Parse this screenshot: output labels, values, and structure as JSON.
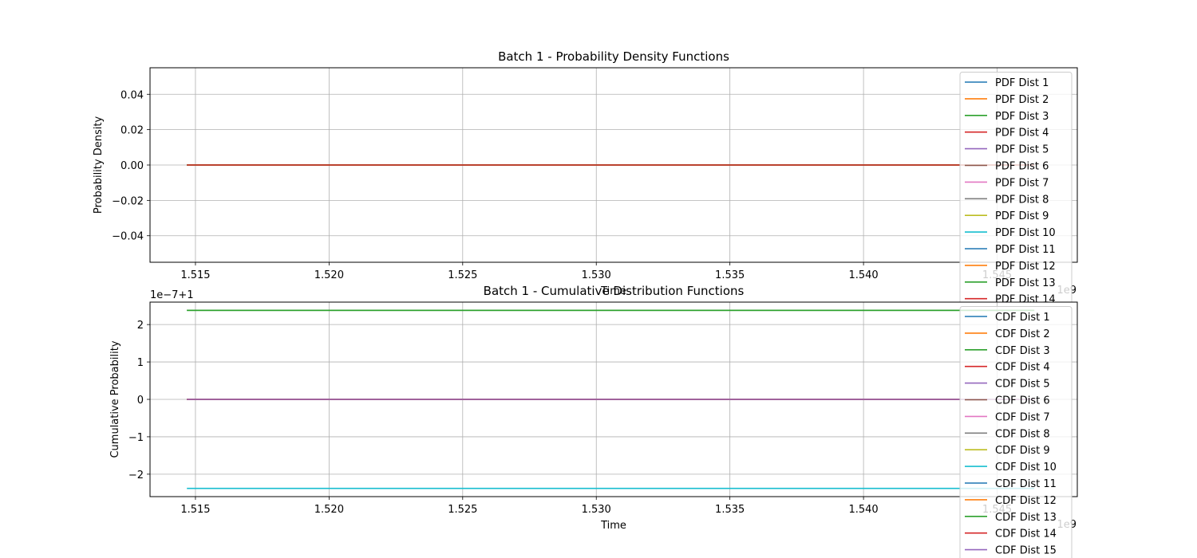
{
  "chart_data": [
    {
      "type": "line",
      "title": "Batch 1 - Probability Density Functions",
      "xlabel": "Time",
      "ylabel": "Probability Density",
      "x_offset_label": "1e9",
      "xlim": [
        1.5133,
        1.548
      ],
      "ylim": [
        -0.055,
        0.055
      ],
      "x_ticks": [
        1.515,
        1.52,
        1.525,
        1.53,
        1.535,
        1.54,
        1.545
      ],
      "x_tick_labels": [
        "1.515",
        "1.520",
        "1.525",
        "1.530",
        "1.535",
        "1.540",
        "1.545"
      ],
      "y_ticks": [
        0.04,
        0.02,
        0.0,
        -0.02,
        -0.04
      ],
      "y_tick_labels": [
        "0.04",
        "0.02",
        "0.00",
        "−0.02",
        "−0.04"
      ],
      "grid": true,
      "legend_position": "right",
      "series": [
        {
          "name": "PDF Dist 1",
          "color": "#1f77b4",
          "x": [
            1.51468,
            1.54639
          ],
          "y": [
            0.0,
            0.0
          ]
        },
        {
          "name": "PDF Dist 2",
          "color": "#ff7f0e",
          "x": [
            1.51468,
            1.54639
          ],
          "y": [
            0.0,
            0.0
          ]
        },
        {
          "name": "PDF Dist 3",
          "color": "#2ca02c",
          "x": [
            1.51468,
            1.54639
          ],
          "y": [
            0.0,
            0.0
          ]
        },
        {
          "name": "PDF Dist 4",
          "color": "#d62728",
          "x": [
            1.51468,
            1.54639
          ],
          "y": [
            0.0,
            0.0
          ]
        },
        {
          "name": "PDF Dist 5",
          "color": "#9467bd",
          "x": [
            1.51468,
            1.54639
          ],
          "y": [
            0.0,
            0.0
          ]
        },
        {
          "name": "PDF Dist 6",
          "color": "#8c564b",
          "x": [
            1.51468,
            1.54639
          ],
          "y": [
            0.0,
            0.0
          ]
        },
        {
          "name": "PDF Dist 7",
          "color": "#e377c2",
          "x": [
            1.51468,
            1.54639
          ],
          "y": [
            0.0,
            0.0
          ]
        },
        {
          "name": "PDF Dist 8",
          "color": "#7f7f7f",
          "x": [
            1.51468,
            1.54639
          ],
          "y": [
            0.0,
            0.0
          ]
        },
        {
          "name": "PDF Dist 9",
          "color": "#bcbd22",
          "x": [
            1.51468,
            1.54639
          ],
          "y": [
            0.0,
            0.0
          ]
        },
        {
          "name": "PDF Dist 10",
          "color": "#17becf",
          "x": [
            1.51468,
            1.54639
          ],
          "y": [
            0.0,
            0.0
          ]
        },
        {
          "name": "PDF Dist 11",
          "color": "#1f77b4",
          "x": [
            1.51468,
            1.54639
          ],
          "y": [
            0.0,
            0.0
          ]
        },
        {
          "name": "PDF Dist 12",
          "color": "#ff7f0e",
          "x": [
            1.51468,
            1.54639
          ],
          "y": [
            0.0,
            0.0
          ]
        },
        {
          "name": "PDF Dist 13",
          "color": "#2ca02c",
          "x": [
            1.51468,
            1.54639
          ],
          "y": [
            0.0,
            0.0
          ]
        },
        {
          "name": "PDF Dist 14",
          "color": "#d62728",
          "x": [
            1.51468,
            1.54639
          ],
          "y": [
            0.0,
            0.0
          ]
        }
      ]
    },
    {
      "type": "line",
      "title": "Batch 1 - Cumulative Distribution Functions",
      "xlabel": "Time",
      "ylabel": "Cumulative Probability",
      "x_offset_label": "1e9",
      "y_offset_label": "1e−7+1",
      "xlim": [
        1.5133,
        1.548
      ],
      "ylim": [
        -2.6,
        2.6
      ],
      "x_ticks": [
        1.515,
        1.52,
        1.525,
        1.53,
        1.535,
        1.54,
        1.545
      ],
      "x_tick_labels": [
        "1.515",
        "1.520",
        "1.525",
        "1.530",
        "1.535",
        "1.540",
        "1.545"
      ],
      "y_ticks": [
        2,
        1,
        0,
        -1,
        -2
      ],
      "y_tick_labels": [
        "2",
        "1",
        "0",
        "−1",
        "−2"
      ],
      "grid": true,
      "legend_position": "right",
      "series": [
        {
          "name": "CDF Dist 1",
          "color": "#1f77b4",
          "x": [
            1.51468,
            1.54639
          ],
          "y": [
            0.0,
            0.0
          ]
        },
        {
          "name": "CDF Dist 2",
          "color": "#ff7f0e",
          "x": [
            1.51468,
            1.54639
          ],
          "y": [
            0.0,
            0.0
          ]
        },
        {
          "name": "CDF Dist 3",
          "color": "#2ca02c",
          "x": [
            1.51468,
            1.54639
          ],
          "y": [
            2.38,
            2.38
          ]
        },
        {
          "name": "CDF Dist 4",
          "color": "#d62728",
          "x": [
            1.51468,
            1.54639
          ],
          "y": [
            0.0,
            0.0
          ]
        },
        {
          "name": "CDF Dist 5",
          "color": "#9467bd",
          "x": [
            1.51468,
            1.54639
          ],
          "y": [
            0.0,
            0.0
          ]
        },
        {
          "name": "CDF Dist 6",
          "color": "#8c564b",
          "x": [
            1.51468,
            1.54639
          ],
          "y": [
            0.0,
            0.0
          ]
        },
        {
          "name": "CDF Dist 7",
          "color": "#e377c2",
          "x": [
            1.51468,
            1.54639
          ],
          "y": [
            0.0,
            0.0
          ]
        },
        {
          "name": "CDF Dist 8",
          "color": "#7f7f7f",
          "x": [
            1.51468,
            1.54639
          ],
          "y": [
            0.0,
            0.0
          ]
        },
        {
          "name": "CDF Dist 9",
          "color": "#bcbd22",
          "x": [
            1.51468,
            1.54639
          ],
          "y": [
            0.0,
            0.0
          ]
        },
        {
          "name": "CDF Dist 10",
          "color": "#17becf",
          "x": [
            1.51468,
            1.54639
          ],
          "y": [
            -2.38,
            -2.38
          ]
        },
        {
          "name": "CDF Dist 11",
          "color": "#1f77b4",
          "x": [
            1.51468,
            1.54639
          ],
          "y": [
            0.0,
            0.0
          ]
        },
        {
          "name": "CDF Dist 12",
          "color": "#ff7f0e",
          "x": [
            1.51468,
            1.54639
          ],
          "y": [
            0.0,
            0.0
          ]
        },
        {
          "name": "CDF Dist 13",
          "color": "#2ca02c",
          "x": [
            1.51468,
            1.54639
          ],
          "y": [
            2.38,
            2.38
          ]
        },
        {
          "name": "CDF Dist 14",
          "color": "#d62728",
          "x": [
            1.51468,
            1.54639
          ],
          "y": [
            0.0,
            0.0
          ]
        },
        {
          "name": "CDF Dist 15",
          "color": "#9467bd",
          "x": [
            1.51468,
            1.54639
          ],
          "y": [
            0.0,
            0.0
          ]
        }
      ]
    }
  ]
}
